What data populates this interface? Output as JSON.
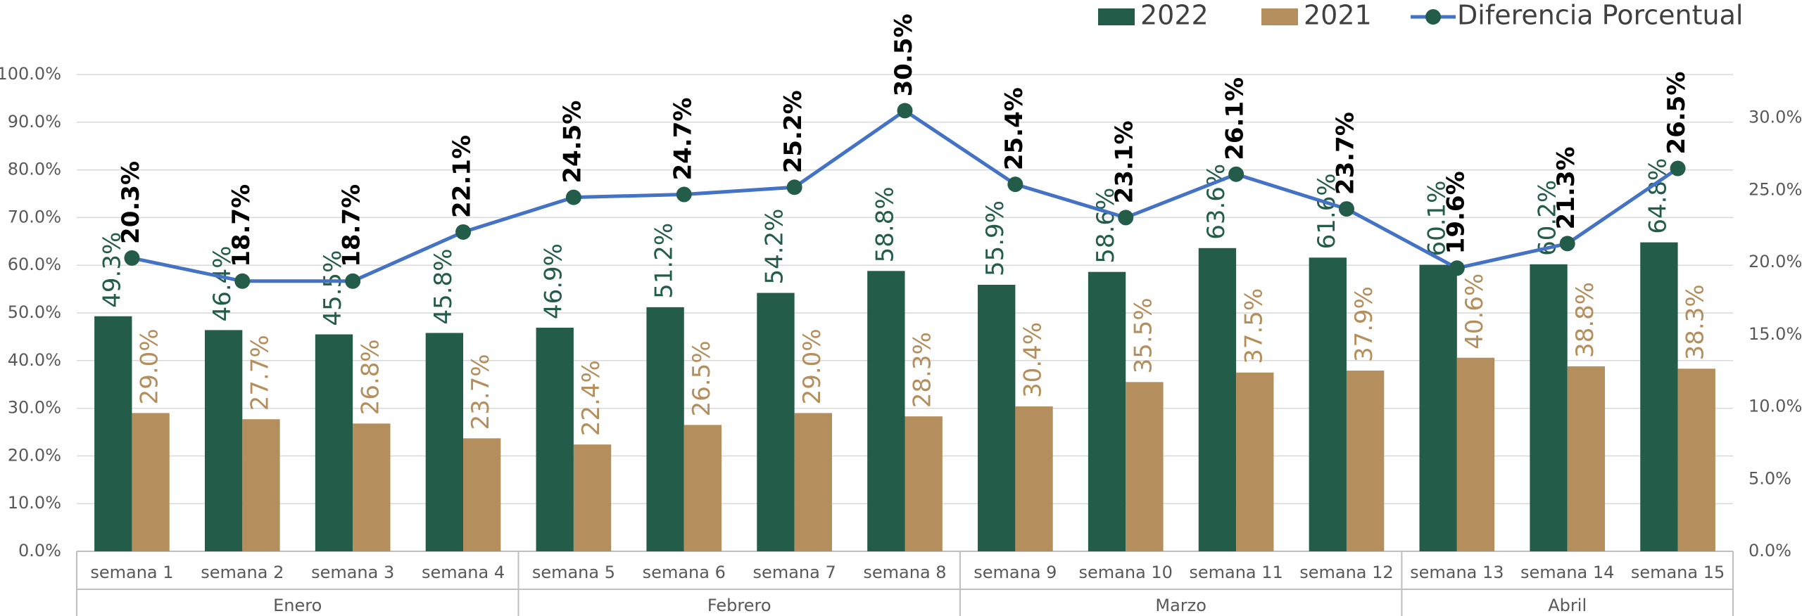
{
  "chart_data": {
    "type": "bar",
    "categories": [
      "semana 1",
      "semana 2",
      "semana 3",
      "semana 4",
      "semana 5",
      "semana 6",
      "semana 7",
      "semana 8",
      "semana 9",
      "semana 10",
      "semana 11",
      "semana 12",
      "semana 13",
      "semana 14",
      "semana 15"
    ],
    "groups": [
      {
        "name": "Enero",
        "span": 4
      },
      {
        "name": "Febrero",
        "span": 4
      },
      {
        "name": "Marzo",
        "span": 4
      },
      {
        "name": "Abril",
        "span": 3
      }
    ],
    "series": [
      {
        "name": "2022",
        "type": "bar",
        "color": "#245c4a",
        "values": [
          49.3,
          46.4,
          45.5,
          45.8,
          46.9,
          51.2,
          54.2,
          58.8,
          55.9,
          58.6,
          63.6,
          61.6,
          60.1,
          60.2,
          64.8
        ],
        "value_labels": [
          "49.3%",
          "46.4%",
          "45.5%",
          "45.8%",
          "46.9%",
          "51.2%",
          "54.2%",
          "58.8%",
          "55.9%",
          "58.6%",
          "63.6%",
          "61.6%",
          "60.1%",
          "60.2%",
          "64.8%"
        ]
      },
      {
        "name": "2021",
        "type": "bar",
        "color": "#b48e5c",
        "values": [
          29.0,
          27.7,
          26.8,
          23.7,
          22.4,
          26.5,
          29.0,
          28.3,
          30.4,
          35.5,
          37.5,
          37.9,
          40.6,
          38.8,
          38.3
        ],
        "value_labels": [
          "29.0%",
          "27.7%",
          "26.8%",
          "23.7%",
          "22.4%",
          "26.5%",
          "29.0%",
          "28.3%",
          "30.4%",
          "35.5%",
          "37.5%",
          "37.9%",
          "40.6%",
          "38.8%",
          "38.3%"
        ]
      },
      {
        "name": "Diferencia Porcentual",
        "type": "line",
        "axis": "y2",
        "color": "#4472c4",
        "marker_color": "#245c4a",
        "values": [
          20.3,
          18.7,
          18.7,
          22.1,
          24.5,
          24.7,
          25.2,
          30.5,
          25.4,
          23.1,
          26.1,
          23.7,
          19.6,
          21.3,
          26.5
        ],
        "value_labels": [
          "20.3%",
          "18.7%",
          "18.7%",
          "22.1%",
          "24.5%",
          "24.7%",
          "25.2%",
          "30.5%",
          "25.4%",
          "23.1%",
          "26.1%",
          "23.7%",
          "19.6%",
          "21.3%",
          "26.5%"
        ]
      }
    ],
    "ylim": [
      0,
      100
    ],
    "yticks": [
      {
        "value": 0,
        "label": "0.0%"
      },
      {
        "value": 10,
        "label": "10.0%"
      },
      {
        "value": 20,
        "label": "20.0%"
      },
      {
        "value": 30,
        "label": "30.0%"
      },
      {
        "value": 40,
        "label": "40.0%"
      },
      {
        "value": 50,
        "label": "50.0%"
      },
      {
        "value": 60,
        "label": "60.0%"
      },
      {
        "value": 70,
        "label": "70.0%"
      },
      {
        "value": 80,
        "label": "80.0%"
      },
      {
        "value": 90,
        "label": "90.0%"
      },
      {
        "value": 100,
        "label": "100.0%"
      }
    ],
    "y2lim": [
      0,
      33
    ],
    "y2ticks": [
      {
        "value": 0,
        "label": "0.0%"
      },
      {
        "value": 5,
        "label": "5.0%"
      },
      {
        "value": 10,
        "label": "10.0%"
      },
      {
        "value": 15,
        "label": "15.0%"
      },
      {
        "value": 20,
        "label": "20.0%"
      },
      {
        "value": 25,
        "label": "25.0%"
      },
      {
        "value": 30,
        "label": "30.0%"
      }
    ],
    "grid": true,
    "legend": "top-right"
  }
}
